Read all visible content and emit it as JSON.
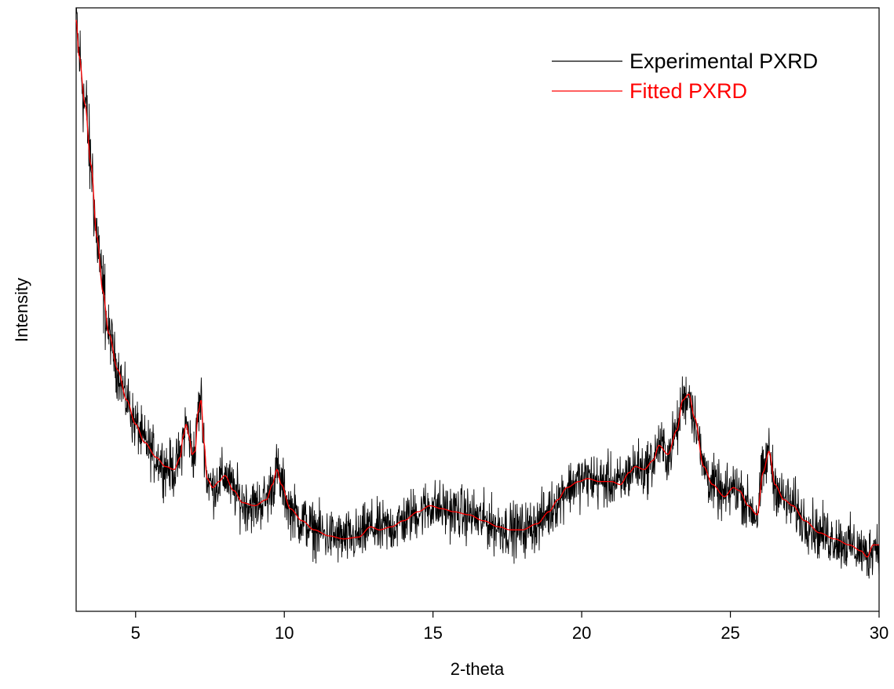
{
  "chart_data": {
    "type": "line",
    "xlabel": "2-theta",
    "ylabel": "Intensity",
    "xlim": [
      3,
      30
    ],
    "ylim": [
      0,
      100
    ],
    "x_ticks": [
      5,
      10,
      15,
      20,
      25,
      30
    ],
    "y_ticks_shown": false,
    "grid": false,
    "legend_position": "top-right",
    "noise_amplitude": 2.2,
    "series": [
      {
        "name": "Experimental PXRD",
        "color": "#000000",
        "style": "noisy"
      },
      {
        "name": "Fitted PXRD",
        "color": "#ff0000",
        "style": "smooth",
        "points": [
          [
            3.0,
            98
          ],
          [
            3.1,
            92
          ],
          [
            3.3,
            84
          ],
          [
            3.5,
            74
          ],
          [
            3.7,
            62
          ],
          [
            3.9,
            53
          ],
          [
            4.1,
            46
          ],
          [
            4.4,
            40
          ],
          [
            4.7,
            35
          ],
          [
            5.0,
            31
          ],
          [
            5.3,
            28
          ],
          [
            5.7,
            25.5
          ],
          [
            6.0,
            24
          ],
          [
            6.3,
            23.5
          ],
          [
            6.5,
            25.5
          ],
          [
            6.6,
            29
          ],
          [
            6.7,
            31
          ],
          [
            6.8,
            29
          ],
          [
            6.9,
            26
          ],
          [
            7.0,
            26.5
          ],
          [
            7.1,
            33
          ],
          [
            7.2,
            35
          ],
          [
            7.3,
            28
          ],
          [
            7.4,
            22
          ],
          [
            7.6,
            20.5
          ],
          [
            7.8,
            21.5
          ],
          [
            8.0,
            22.5
          ],
          [
            8.3,
            20
          ],
          [
            8.6,
            18
          ],
          [
            9.0,
            17.5
          ],
          [
            9.4,
            18.5
          ],
          [
            9.6,
            21
          ],
          [
            9.75,
            23.5
          ],
          [
            9.9,
            21
          ],
          [
            10.2,
            17
          ],
          [
            10.6,
            15
          ],
          [
            11.0,
            13.5
          ],
          [
            11.5,
            12.5
          ],
          [
            12.0,
            12
          ],
          [
            12.5,
            12.3
          ],
          [
            12.9,
            14
          ],
          [
            13.2,
            13.5
          ],
          [
            13.6,
            14
          ],
          [
            14.0,
            15
          ],
          [
            14.5,
            16.5
          ],
          [
            14.9,
            17.5
          ],
          [
            15.3,
            17
          ],
          [
            15.7,
            16.5
          ],
          [
            16.2,
            16
          ],
          [
            16.7,
            15
          ],
          [
            17.2,
            14
          ],
          [
            17.6,
            13.5
          ],
          [
            18.0,
            13.5
          ],
          [
            18.5,
            14.5
          ],
          [
            18.9,
            16.5
          ],
          [
            19.2,
            18.5
          ],
          [
            19.5,
            20.5
          ],
          [
            19.9,
            21.5
          ],
          [
            20.2,
            22
          ],
          [
            20.6,
            21.5
          ],
          [
            21.0,
            21.5
          ],
          [
            21.3,
            21
          ],
          [
            21.6,
            23
          ],
          [
            21.8,
            24
          ],
          [
            22.1,
            23.5
          ],
          [
            22.4,
            25
          ],
          [
            22.6,
            27.5
          ],
          [
            22.9,
            26
          ],
          [
            23.2,
            30
          ],
          [
            23.4,
            35
          ],
          [
            23.6,
            36
          ],
          [
            23.8,
            32
          ],
          [
            24.1,
            24
          ],
          [
            24.4,
            21
          ],
          [
            24.8,
            19
          ],
          [
            25.1,
            20.5
          ],
          [
            25.3,
            20
          ],
          [
            25.6,
            17.5
          ],
          [
            25.9,
            16
          ],
          [
            26.1,
            23
          ],
          [
            26.3,
            26.5
          ],
          [
            26.5,
            21
          ],
          [
            26.8,
            18.5
          ],
          [
            27.1,
            17.5
          ],
          [
            27.5,
            15
          ],
          [
            28.0,
            13
          ],
          [
            28.5,
            12
          ],
          [
            29.0,
            11
          ],
          [
            29.4,
            10
          ],
          [
            29.6,
            9
          ],
          [
            29.8,
            11
          ],
          [
            30.0,
            11
          ]
        ]
      }
    ]
  }
}
